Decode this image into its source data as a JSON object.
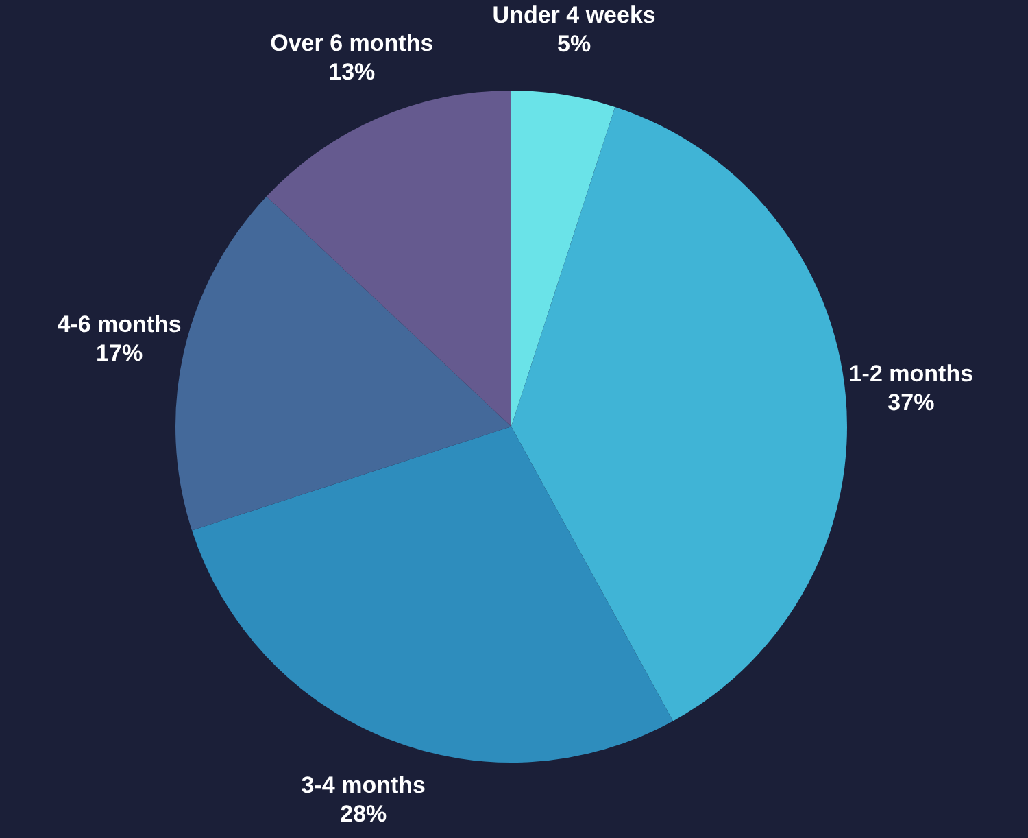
{
  "chart_data": {
    "type": "pie",
    "categories": [
      "Under 4 weeks",
      "1-2 months",
      "3-4 months",
      "4-6 months",
      "Over 6 months"
    ],
    "values": [
      5,
      37,
      28,
      17,
      13
    ],
    "value_labels": [
      "5%",
      "37%",
      "28%",
      "17%",
      "13%"
    ],
    "colors": [
      "#6ae3e8",
      "#40b4d6",
      "#2e8dbd",
      "#44699a",
      "#655a8f"
    ],
    "legend": false
  }
}
